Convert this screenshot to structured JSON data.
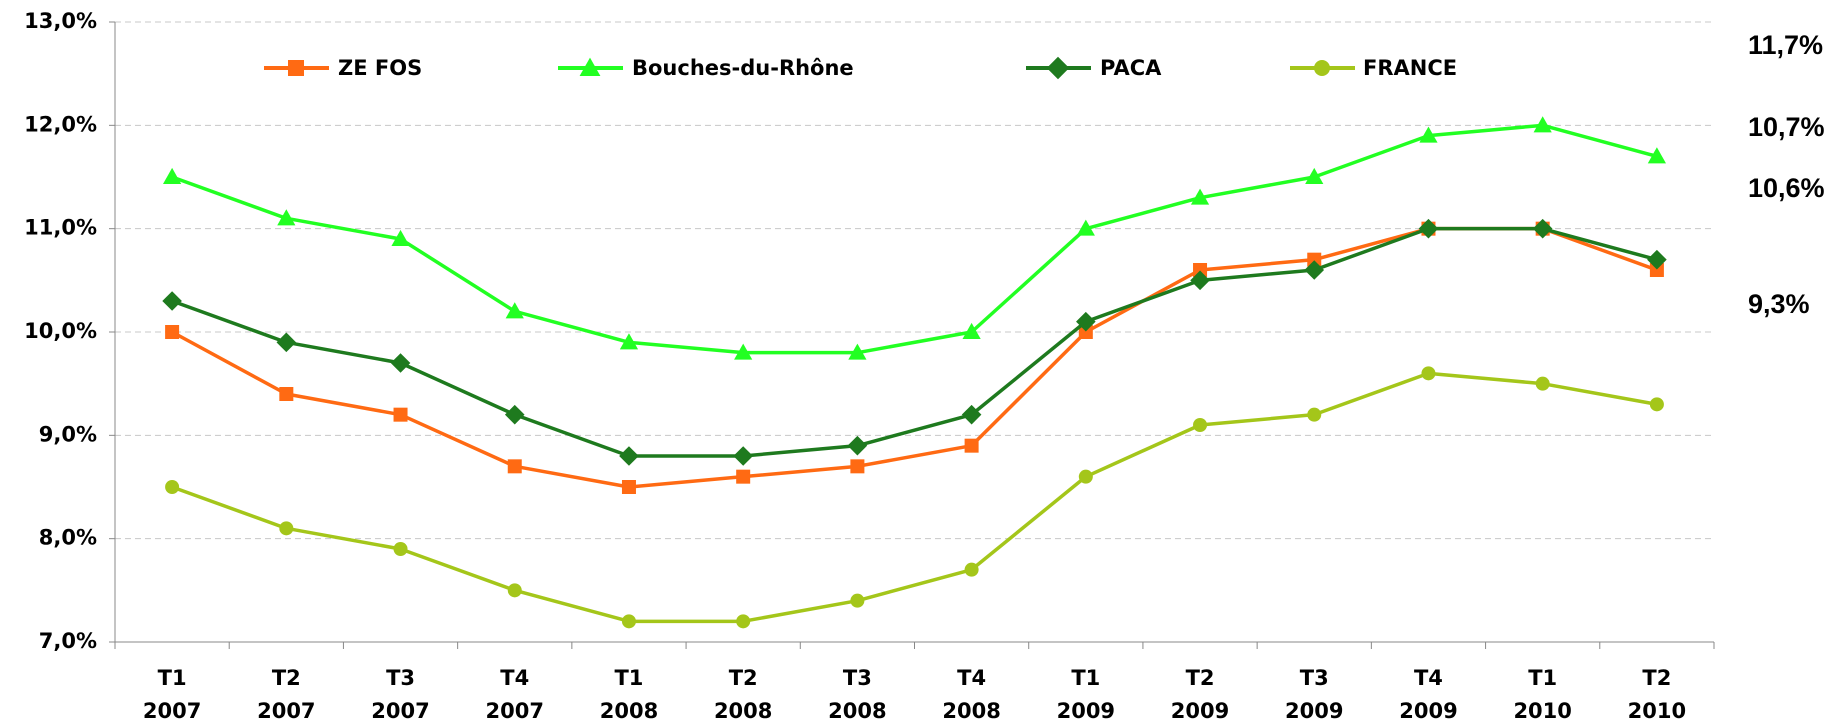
{
  "chart_data": {
    "type": "line",
    "categories": [
      [
        "T1",
        "2007"
      ],
      [
        "T2",
        "2007"
      ],
      [
        "T3",
        "2007"
      ],
      [
        "T4",
        "2007"
      ],
      [
        "T1",
        "2008"
      ],
      [
        "T2",
        "2008"
      ],
      [
        "T3",
        "2008"
      ],
      [
        "T4",
        "2008"
      ],
      [
        "T1",
        "2009"
      ],
      [
        "T2",
        "2009"
      ],
      [
        "T3",
        "2009"
      ],
      [
        "T4",
        "2009"
      ],
      [
        "T1",
        "2010"
      ],
      [
        "T2",
        "2010"
      ]
    ],
    "series": [
      {
        "name": "ZE FOS",
        "color": "#ff6a13",
        "marker": "square",
        "values": [
          10.0,
          9.4,
          9.2,
          8.7,
          8.5,
          8.6,
          8.7,
          8.9,
          10.0,
          10.6,
          10.7,
          11.0,
          11.0,
          10.6
        ]
      },
      {
        "name": "Bouches-du-Rhône",
        "color": "#22ff22",
        "marker": "triangle",
        "values": [
          11.5,
          11.1,
          10.9,
          10.2,
          9.9,
          9.8,
          9.8,
          10.0,
          11.0,
          11.3,
          11.5,
          11.9,
          12.0,
          11.7
        ]
      },
      {
        "name": "PACA",
        "color": "#1e7a1e",
        "marker": "diamond",
        "values": [
          10.3,
          9.9,
          9.7,
          9.2,
          8.8,
          8.8,
          8.9,
          9.2,
          10.1,
          10.5,
          10.6,
          11.0,
          11.0,
          10.7
        ]
      },
      {
        "name": "FRANCE",
        "color": "#a4c61a",
        "marker": "circle",
        "values": [
          8.5,
          8.1,
          7.9,
          7.5,
          7.2,
          7.2,
          7.4,
          7.7,
          8.6,
          9.1,
          9.2,
          9.6,
          9.5,
          9.3
        ]
      }
    ],
    "ylim": [
      7,
      13
    ],
    "yticks": [
      {
        "value": 7,
        "label": "7,0%"
      },
      {
        "value": 8,
        "label": "8,0%"
      },
      {
        "value": 9,
        "label": "9,0%"
      },
      {
        "value": 10,
        "label": "10,0%"
      },
      {
        "value": 11,
        "label": "11,0%"
      },
      {
        "value": 12,
        "label": "12,0%"
      },
      {
        "value": 13,
        "label": "13,0%"
      }
    ],
    "grid": true,
    "legend": "top",
    "annotations": [
      {
        "text": "11,7%",
        "color": "#22ee22"
      },
      {
        "text": "10,7%",
        "color": "#2a7a2a"
      },
      {
        "text": "10,6%",
        "color": "#ff5a1a"
      },
      {
        "text": "9,3%",
        "color": "#aab81a"
      }
    ]
  }
}
